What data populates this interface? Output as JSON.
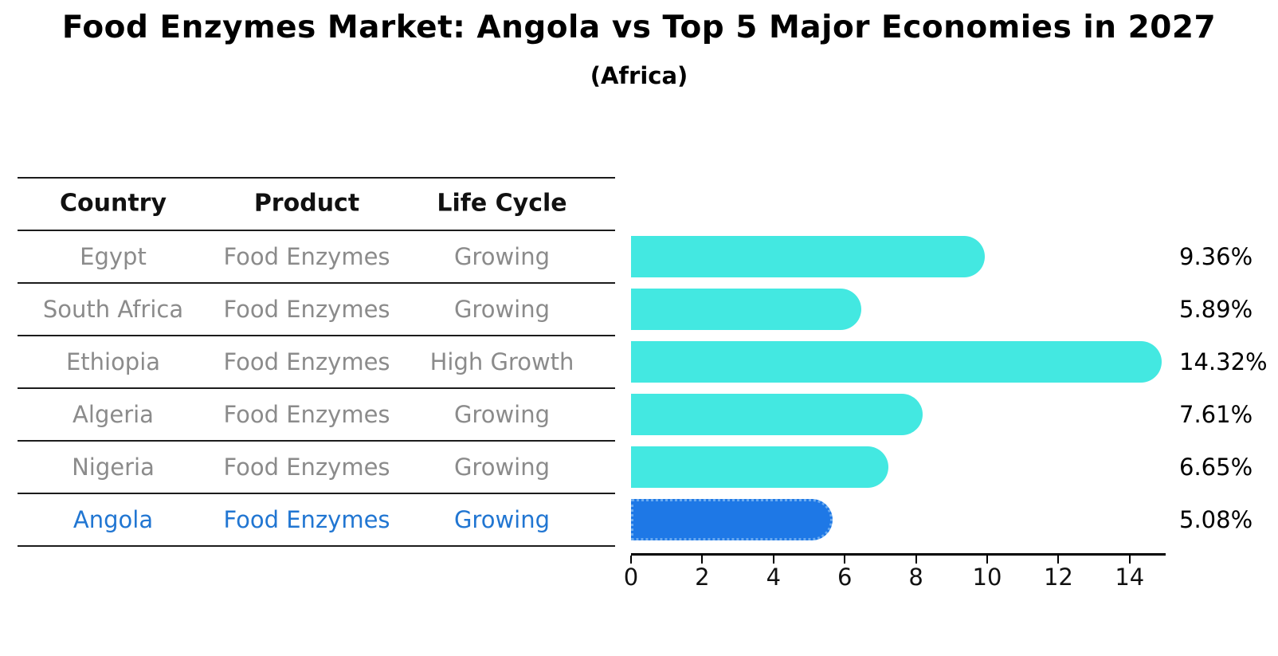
{
  "title": "Food Enzymes Market: Angola vs Top 5 Major Economies in 2027",
  "subtitle": "(Africa)",
  "table": {
    "headers": [
      "Country",
      "Product",
      "Life Cycle"
    ],
    "rows": [
      {
        "country": "Egypt",
        "product": "Food Enzymes",
        "life_cycle": "Growing",
        "highlight": false
      },
      {
        "country": "South Africa",
        "product": "Food Enzymes",
        "life_cycle": "Growing",
        "highlight": false
      },
      {
        "country": "Ethiopia",
        "product": "Food Enzymes",
        "life_cycle": "High Growth",
        "highlight": false
      },
      {
        "country": "Algeria",
        "product": "Food Enzymes",
        "life_cycle": "Growing",
        "highlight": false
      },
      {
        "country": "Nigeria",
        "product": "Food Enzymes",
        "life_cycle": "Growing",
        "highlight": false
      },
      {
        "country": "Angola",
        "product": "Food Enzymes",
        "life_cycle": "Growing",
        "highlight": true
      }
    ]
  },
  "chart_data": {
    "type": "bar",
    "orientation": "horizontal",
    "title": "Food Enzymes Market: Angola vs Top 5 Major Economies in 2027",
    "subtitle": "(Africa)",
    "categories": [
      "Egypt",
      "South Africa",
      "Ethiopia",
      "Algeria",
      "Nigeria",
      "Angola"
    ],
    "values": [
      9.36,
      5.89,
      14.32,
      7.61,
      6.65,
      5.08
    ],
    "value_labels": [
      "9.36%",
      "5.89%",
      "14.32%",
      "7.61%",
      "6.65%",
      "5.08%"
    ],
    "unit": "percent",
    "xticks": [
      0,
      2,
      4,
      6,
      8,
      10,
      12,
      14
    ],
    "xlim": [
      0,
      15
    ],
    "grid": false,
    "legend": false,
    "bar_color": "#43e8e1",
    "highlight_index": 5,
    "highlight_bar_color": "#1e78e6",
    "highlight_bar_border_color": "#6babf0",
    "highlight_text_color": "#2176d2",
    "row_text_color": "#8b8b8b",
    "axis_color": "#000000"
  }
}
